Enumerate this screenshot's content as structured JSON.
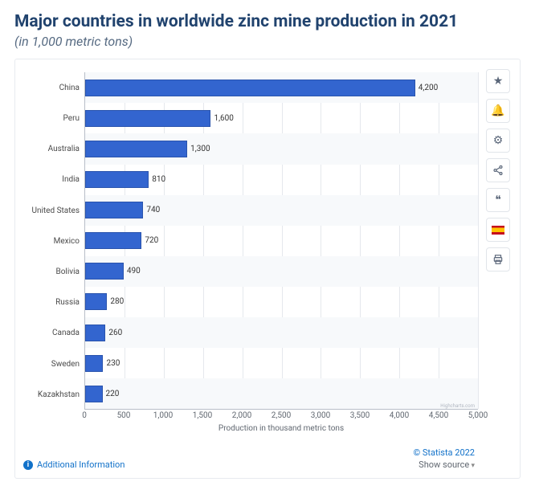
{
  "title": "Major countries in worldwide zinc mine production in 2021",
  "subtitle": "(in 1,000 metric tons)",
  "chart": {
    "type": "bar-horizontal",
    "categories": [
      "China",
      "Peru",
      "Australia",
      "India",
      "United States",
      "Mexico",
      "Bolivia",
      "Russia",
      "Canada",
      "Sweden",
      "Kazakhstan"
    ],
    "values": [
      4200,
      1600,
      1300,
      810,
      740,
      720,
      490,
      280,
      260,
      230,
      220
    ],
    "labels": [
      "4,200",
      "1,600",
      "1,300",
      "810",
      "740",
      "720",
      "490",
      "280",
      "260",
      "230",
      "220"
    ],
    "bar_color": "#3365cf",
    "bar_border": "#2a54ad",
    "stripe_color": "#f7f9fb",
    "xmin": 0,
    "xmax": 5000,
    "xticks": [
      0,
      500,
      1000,
      1500,
      2000,
      2500,
      3000,
      3500,
      4000,
      4500,
      5000
    ],
    "xtick_labels": [
      "0",
      "500",
      "1,000",
      "1,500",
      "2,000",
      "2,500",
      "3,000",
      "3,500",
      "4,000",
      "4,500",
      "5,000"
    ],
    "xlabel": "Production in thousand metric tons",
    "background_color": "#ffffff",
    "grid_color": "#e5e8ed",
    "axis_label_fontsize": 10,
    "value_fontsize": 10
  },
  "footer": {
    "additional_info": "Additional Information",
    "copyright": "© Statista 2022",
    "show_source": "Show source"
  },
  "toolbar": {
    "items": [
      {
        "name": "favorite-icon",
        "glyph": "★"
      },
      {
        "name": "notify-icon",
        "glyph": "🔔"
      },
      {
        "name": "settings-icon",
        "glyph": "⚙"
      },
      {
        "name": "share-icon",
        "glyph": "share"
      },
      {
        "name": "cite-icon",
        "glyph": "❝"
      },
      {
        "name": "language-icon",
        "glyph": "flag"
      },
      {
        "name": "print-icon",
        "glyph": "print"
      }
    ]
  },
  "hc_credit": "Highcharts.com"
}
